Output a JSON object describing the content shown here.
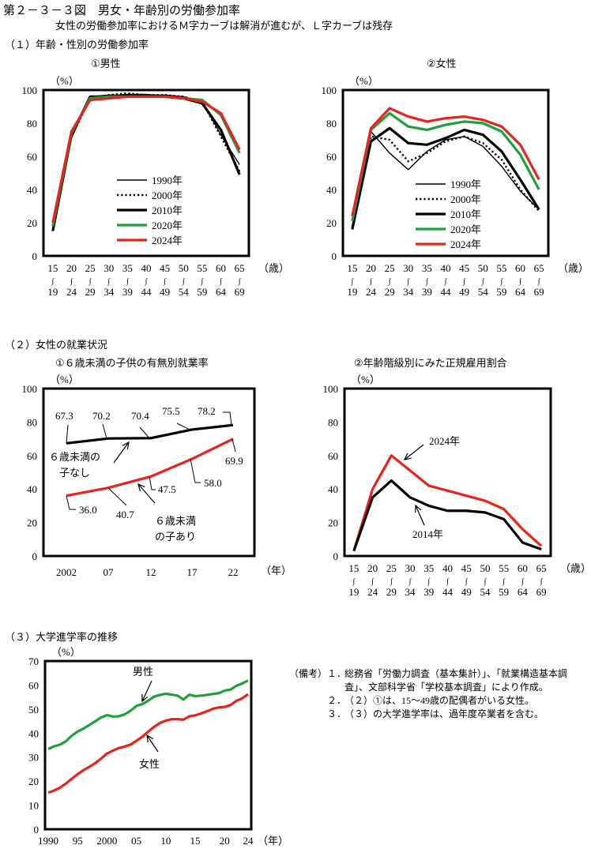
{
  "header": {
    "title": "第２－３－３図　男女・年齢別の労働参加率",
    "subtitle": "女性の労働参加率におけるＭ字カーブは解消が進むが、Ｌ字カーブは残存"
  },
  "sections": {
    "s1": "（１）年齢・性別の労働参加率",
    "s2": "（２）女性の就業状況",
    "s3": "（３）大学進学率の推移"
  },
  "chart_data": [
    {
      "id": "male-participation",
      "type": "line",
      "title": "①男性",
      "ylabel": "（%）",
      "xlabel": "（歳）",
      "ylim": [
        0,
        100
      ],
      "yticks": [
        0,
        20,
        40,
        60,
        80,
        100
      ],
      "categories": [
        [
          "15",
          "19"
        ],
        [
          "20",
          "24"
        ],
        [
          "25",
          "29"
        ],
        [
          "30",
          "34"
        ],
        [
          "35",
          "39"
        ],
        [
          "40",
          "44"
        ],
        [
          "45",
          "49"
        ],
        [
          "50",
          "54"
        ],
        [
          "55",
          "59"
        ],
        [
          "60",
          "64"
        ],
        [
          "65",
          "69"
        ]
      ],
      "legend_position": "center",
      "series": [
        {
          "name": "1990年",
          "style": "thin",
          "color": "#000000",
          "values": [
            18,
            71,
            96,
            97,
            97,
            97,
            97,
            96,
            93,
            73,
            55
          ]
        },
        {
          "name": "2000年",
          "style": "dotted",
          "color": "#000000",
          "values": [
            18,
            72,
            95,
            97,
            98,
            97,
            97,
            96,
            93,
            72,
            51
          ]
        },
        {
          "name": "2010年",
          "style": "thick",
          "color": "#000000",
          "values": [
            15,
            73,
            96,
            96,
            97,
            97,
            96,
            95,
            92,
            76,
            49
          ]
        },
        {
          "name": "2020年",
          "style": "thick",
          "color": "#1ea03c",
          "values": [
            18,
            74,
            95,
            96,
            96,
            96,
            96,
            95,
            94,
            85,
            62
          ]
        },
        {
          "name": "2024年",
          "style": "thick",
          "color": "#e8231c",
          "values": [
            20,
            75,
            94,
            95,
            96,
            96,
            96,
            95,
            93,
            86,
            64
          ]
        }
      ]
    },
    {
      "id": "female-participation",
      "type": "line",
      "title": "②女性",
      "ylabel": "（%）",
      "xlabel": "（歳）",
      "ylim": [
        0,
        100
      ],
      "yticks": [
        0,
        20,
        40,
        60,
        80,
        100
      ],
      "categories": [
        [
          "15",
          "19"
        ],
        [
          "20",
          "24"
        ],
        [
          "25",
          "29"
        ],
        [
          "30",
          "34"
        ],
        [
          "35",
          "39"
        ],
        [
          "40",
          "44"
        ],
        [
          "45",
          "49"
        ],
        [
          "50",
          "54"
        ],
        [
          "55",
          "59"
        ],
        [
          "60",
          "64"
        ],
        [
          "65",
          "69"
        ]
      ],
      "legend_position": "bottom-center",
      "series": [
        {
          "name": "1990年",
          "style": "thin",
          "color": "#000000",
          "values": [
            18,
            75,
            62,
            52,
            63,
            70,
            72,
            66,
            54,
            39,
            28
          ]
        },
        {
          "name": "2000年",
          "style": "dotted",
          "color": "#000000",
          "values": [
            17,
            72,
            70,
            57,
            62,
            69,
            72,
            68,
            58,
            40,
            27
          ]
        },
        {
          "name": "2010年",
          "style": "thick",
          "color": "#000000",
          "values": [
            16,
            69,
            77,
            68,
            67,
            71,
            76,
            73,
            63,
            46,
            28
          ]
        },
        {
          "name": "2020年",
          "style": "thick",
          "color": "#1ea03c",
          "values": [
            21,
            76,
            86,
            78,
            76,
            79,
            81,
            80,
            75,
            61,
            40
          ]
        },
        {
          "name": "2024年",
          "style": "thick",
          "color": "#e8231c",
          "values": [
            24,
            77,
            89,
            84,
            81,
            83,
            84,
            82,
            78,
            67,
            46
          ]
        }
      ]
    },
    {
      "id": "employment-children",
      "type": "line",
      "title": "①６歳未満の子供の有無別就業率",
      "ylabel": "（%）",
      "xlabel": "（年）",
      "ylim": [
        0,
        100
      ],
      "yticks": [
        0,
        20,
        40,
        60,
        80,
        100
      ],
      "categories": [
        "2002",
        "07",
        "12",
        "17",
        "22"
      ],
      "series": [
        {
          "name": "６歳未満の子なし",
          "name_lines": [
            "６歳未満の",
            "子なし"
          ],
          "color": "#000000",
          "values": [
            67.3,
            70.2,
            70.4,
            75.5,
            78.2
          ],
          "labels": [
            "67.3",
            "70.2",
            "70.4",
            "75.5",
            "78.2"
          ]
        },
        {
          "name": "６歳未満の子あり",
          "name_lines": [
            "６歳未満",
            "の子あり"
          ],
          "color": "#e8231c",
          "values": [
            36.0,
            40.7,
            47.5,
            58.0,
            69.9
          ],
          "labels": [
            "36.0",
            "40.7",
            "47.5",
            "58.0",
            "69.9"
          ]
        }
      ]
    },
    {
      "id": "regular-employment",
      "type": "line",
      "title": "②年齢階級別にみた正規雇用割合",
      "ylabel": "（%）",
      "xlabel": "（歳）",
      "ylim": [
        0,
        100
      ],
      "yticks": [
        0,
        20,
        40,
        60,
        80,
        100
      ],
      "categories": [
        [
          "15",
          "19"
        ],
        [
          "20",
          "24"
        ],
        [
          "25",
          "29"
        ],
        [
          "30",
          "34"
        ],
        [
          "35",
          "39"
        ],
        [
          "40",
          "44"
        ],
        [
          "45",
          "49"
        ],
        [
          "50",
          "54"
        ],
        [
          "55",
          "59"
        ],
        [
          "60",
          "64"
        ],
        [
          "65",
          "69"
        ]
      ],
      "series": [
        {
          "name": "2024年",
          "color": "#e8231c",
          "values": [
            3,
            40,
            60,
            51,
            42,
            39,
            36,
            33,
            28,
            16,
            6
          ]
        },
        {
          "name": "2014年",
          "color": "#000000",
          "values": [
            3,
            35,
            45,
            35,
            30,
            27,
            27,
            26,
            22,
            8,
            4
          ]
        }
      ]
    },
    {
      "id": "university-enrollment",
      "type": "line",
      "title": "",
      "ylabel": "（%）",
      "xlabel": "（年）",
      "ylim": [
        0,
        70
      ],
      "yticks": [
        0,
        10,
        20,
        30,
        40,
        50,
        60,
        70
      ],
      "x": [
        1990,
        1991,
        1992,
        1993,
        1994,
        1995,
        1996,
        1997,
        1998,
        1999,
        2000,
        2001,
        2002,
        2003,
        2004,
        2005,
        2006,
        2007,
        2008,
        2009,
        2010,
        2011,
        2012,
        2013,
        2014,
        2015,
        2016,
        2017,
        2018,
        2019,
        2020,
        2021,
        2022,
        2023,
        2024
      ],
      "xticks": [
        {
          "v": 1990,
          "l": "1990"
        },
        {
          "v": 1995,
          "l": "95"
        },
        {
          "v": 2000,
          "l": "2000"
        },
        {
          "v": 2005,
          "l": "05"
        },
        {
          "v": 2010,
          "l": "10"
        },
        {
          "v": 2015,
          "l": "15"
        },
        {
          "v": 2020,
          "l": "20"
        },
        {
          "v": 2024,
          "l": "24"
        }
      ],
      "series": [
        {
          "name": "男性",
          "color": "#1ea03c",
          "values": [
            33.4,
            34.5,
            35.2,
            36.6,
            38.9,
            40.7,
            41.9,
            43.4,
            44.9,
            46.5,
            47.5,
            46.9,
            47.0,
            47.8,
            49.3,
            51.3,
            52.1,
            53.5,
            55.2,
            55.9,
            56.4,
            56.0,
            55.6,
            54.0,
            56.0,
            55.4,
            55.6,
            55.9,
            56.3,
            56.6,
            57.7,
            58.1,
            59.7,
            60.7,
            61.9
          ]
        },
        {
          "name": "女性",
          "color": "#e8231c",
          "values": [
            15.2,
            16.1,
            17.3,
            19.0,
            21.0,
            22.9,
            24.6,
            26.0,
            27.5,
            29.4,
            31.5,
            32.7,
            33.8,
            34.4,
            35.2,
            36.8,
            38.5,
            40.6,
            42.6,
            44.2,
            45.2,
            45.8,
            45.8,
            45.6,
            47.0,
            47.4,
            48.2,
            49.1,
            50.1,
            50.7,
            50.9,
            51.7,
            53.4,
            54.5,
            56.2
          ]
        }
      ]
    }
  ],
  "annotations": {
    "c3_no_child": [
      "６歳未満の",
      "子なし"
    ],
    "c3_child": [
      "６歳未満",
      "の子あり"
    ],
    "c4_2024": "2024年",
    "c4_2014": "2014年",
    "c5_male": "男性",
    "c5_female": "女性"
  },
  "notes": {
    "label": "（備考）",
    "items": [
      {
        "num": "１．",
        "text": "総務省「労働力調査（基本集計）」、「就業構造基本調査」、文部科学省「学校基本調査」により作成。"
      },
      {
        "num": "２．",
        "text": "（２）①は、15～49歳の配偶者がいる女性。"
      },
      {
        "num": "３．",
        "text": "（３）の大学進学率は、過年度卒業者を含む。"
      }
    ]
  }
}
